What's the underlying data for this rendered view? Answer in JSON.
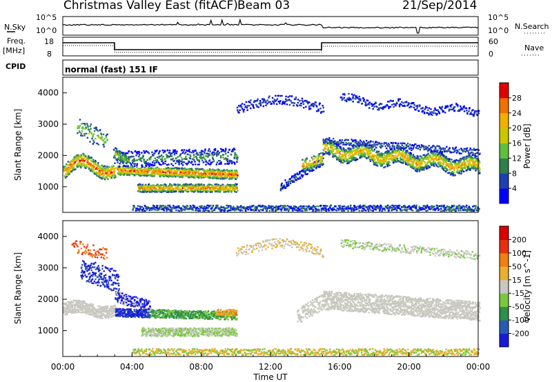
{
  "header": {
    "title": "Christmas Valley East (fitACF)",
    "beam": "Beam 03",
    "date": "21/Sep/2014"
  },
  "strip_panels": {
    "nsky_label": "N.Sky",
    "nsky_ticks": [
      "10^5",
      "10^0"
    ],
    "nsearch_label": "N.Search",
    "nsearch_ticks": [
      "10^5",
      "10^0"
    ],
    "freq_label": "Freq.",
    "freq_unit": "[MHz]",
    "freq_ticks": [
      "18",
      "8"
    ],
    "nave_label": "Nave",
    "nave_ticks": [
      "60",
      "0"
    ],
    "cpid_label": "CPID",
    "cpid_value": "normal (fast) 151 IF"
  },
  "chart_data": [
    {
      "type": "heatmap",
      "name": "power",
      "ylabel": "Slant Range [km]",
      "yticks": [
        "4000",
        "3000",
        "2000",
        "1000"
      ],
      "ylim": [
        180,
        4500
      ],
      "colorbar_label": "Power [dB]",
      "colorbar_ticks": [
        "28",
        "24",
        "20",
        "16",
        "12",
        "8",
        "4"
      ],
      "colors": [
        "#0000ff",
        "#1f3fb0",
        "#2e7f4c",
        "#5fbf3f",
        "#c8c800",
        "#f0b000",
        "#f07000",
        "#e00000"
      ]
    },
    {
      "type": "heatmap",
      "name": "velocity",
      "ylabel": "Slant Range [km]",
      "yticks": [
        "4000",
        "3000",
        "2000",
        "1000"
      ],
      "ylim": [
        180,
        4500
      ],
      "colorbar_label": "Velocity [m s^-1]",
      "colorbar_ticks": [
        "200",
        "100",
        "50",
        "15",
        "-15",
        "-50",
        "-100",
        "-200"
      ],
      "colors": [
        "#1a1ad8",
        "#2a5ab0",
        "#2e8f4a",
        "#79c93f",
        "#c8c8c0",
        "#e8b030",
        "#f08010",
        "#e83010",
        "#d80000"
      ]
    }
  ],
  "time_axis": {
    "xlabel": "Time UT",
    "ticks": [
      "00:00",
      "04:00",
      "08:00",
      "12:00",
      "16:00",
      "20:00",
      "00:00"
    ]
  }
}
